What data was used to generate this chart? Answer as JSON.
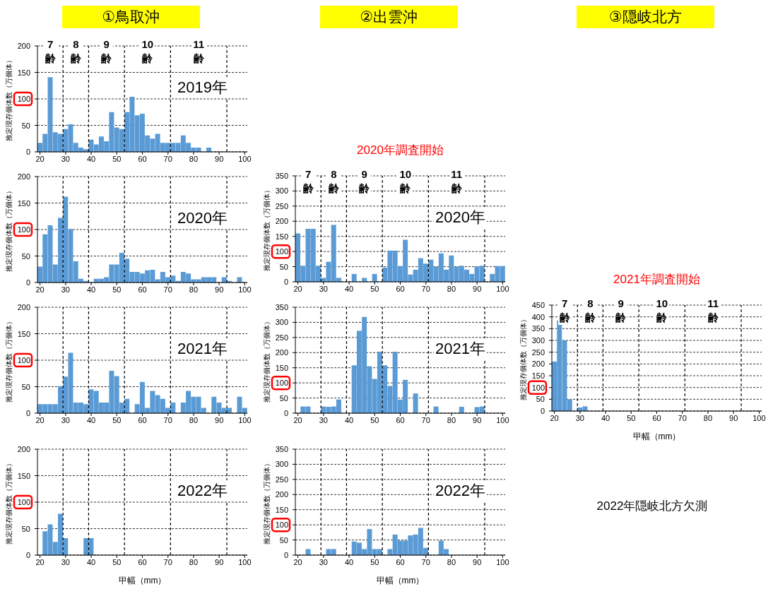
{
  "chart_data": [
    {
      "type": "histogram",
      "title": "①鳥取沖",
      "ylabel": "推定現存個体数（万個体）",
      "color": "#5b9bd5",
      "grid": "y",
      "line_style": "dashed",
      "xlim": [
        19,
        101
      ],
      "xticks": [
        20,
        30,
        40,
        50,
        60,
        70,
        80,
        90,
        100
      ],
      "ylim": [
        0,
        200
      ],
      "yticks": [
        0,
        50,
        100,
        150,
        200
      ],
      "bins": [
        19,
        21,
        23,
        25,
        27,
        29,
        31,
        33,
        35,
        37,
        39,
        41,
        43,
        45,
        47,
        49,
        51,
        53,
        55,
        57,
        59,
        61,
        63,
        65,
        67,
        69,
        71,
        73,
        75,
        77,
        79,
        81,
        83,
        85,
        87,
        89,
        91,
        93,
        95,
        97,
        99,
        101
      ],
      "values": [
        17,
        34,
        141,
        37,
        34,
        43,
        52,
        17,
        8,
        5,
        23,
        14,
        29,
        20,
        75,
        46,
        43,
        75,
        104,
        69,
        72,
        31,
        25,
        34,
        17,
        17,
        17,
        17,
        31,
        17,
        8,
        8,
        0,
        8,
        0,
        0,
        0,
        0,
        0,
        0,
        0
      ],
      "ref_lines": [
        {
          "axis": "x",
          "value": 29
        },
        {
          "axis": "x",
          "value": 39
        },
        {
          "axis": "x",
          "value": 53
        },
        {
          "axis": "x",
          "value": 71
        },
        {
          "axis": "x",
          "value": 93
        }
      ],
      "annotations": [
        "7\n齢",
        "8\n齢",
        "9\n齢",
        "10\n齢",
        "11\n齢",
        "2019年"
      ]
    },
    {
      "type": "histogram",
      "ylabel": "推定現存個体数（万個体）",
      "color": "#5b9bd5",
      "grid": "y",
      "line_style": "dashed",
      "xlim": [
        19,
        101
      ],
      "xticks": [
        20,
        30,
        40,
        50,
        60,
        70,
        80,
        90,
        100
      ],
      "ylim": [
        0,
        200
      ],
      "yticks": [
        0,
        50,
        100,
        150,
        200
      ],
      "bins": [
        19,
        21,
        23,
        25,
        27,
        29,
        31,
        33,
        35,
        37,
        39,
        41,
        43,
        45,
        47,
        49,
        51,
        53,
        55,
        57,
        59,
        61,
        63,
        65,
        67,
        69,
        71,
        73,
        75,
        77,
        79,
        81,
        83,
        85,
        87,
        89,
        91,
        93,
        95,
        97,
        99,
        101
      ],
      "values": [
        30,
        91,
        108,
        34,
        122,
        162,
        101,
        40,
        7,
        3,
        0,
        7,
        7,
        10,
        34,
        34,
        56,
        45,
        20,
        20,
        17,
        23,
        24,
        6,
        20,
        10,
        13,
        3,
        20,
        17,
        6,
        6,
        10,
        10,
        10,
        0,
        10,
        3,
        0,
        10,
        0
      ],
      "ref_lines": [
        {
          "axis": "x",
          "value": 29
        },
        {
          "axis": "x",
          "value": 39
        },
        {
          "axis": "x",
          "value": 53
        },
        {
          "axis": "x",
          "value": 71
        },
        {
          "axis": "x",
          "value": 93
        }
      ],
      "annotations": [
        "2020年"
      ]
    },
    {
      "type": "histogram",
      "ylabel": "推定現存個体数（万個体）",
      "color": "#5b9bd5",
      "grid": "y",
      "line_style": "dashed",
      "xlim": [
        19,
        101
      ],
      "xticks": [
        20,
        30,
        40,
        50,
        60,
        70,
        80,
        90,
        100
      ],
      "ylim": [
        0,
        200
      ],
      "yticks": [
        0,
        50,
        100,
        150,
        200
      ],
      "bins": [
        19,
        21,
        23,
        25,
        27,
        29,
        31,
        33,
        35,
        37,
        39,
        41,
        43,
        45,
        47,
        49,
        51,
        53,
        55,
        57,
        59,
        61,
        63,
        65,
        67,
        69,
        71,
        73,
        75,
        77,
        79,
        81,
        83,
        85,
        87,
        89,
        91,
        93,
        95,
        97,
        99,
        101
      ],
      "values": [
        17,
        17,
        17,
        17,
        51,
        69,
        114,
        20,
        20,
        17,
        45,
        42,
        20,
        20,
        80,
        70,
        20,
        27,
        0,
        17,
        59,
        10,
        42,
        34,
        27,
        10,
        20,
        0,
        20,
        42,
        31,
        31,
        10,
        0,
        31,
        20,
        10,
        10,
        0,
        31,
        10
      ],
      "ref_lines": [
        {
          "axis": "x",
          "value": 29
        },
        {
          "axis": "x",
          "value": 39
        },
        {
          "axis": "x",
          "value": 53
        },
        {
          "axis": "x",
          "value": 71
        },
        {
          "axis": "x",
          "value": 93
        }
      ],
      "annotations": [
        "2021年"
      ]
    },
    {
      "type": "histogram",
      "xlabel": "甲幅（mm）",
      "ylabel": "推定現存個体数（万個体）",
      "color": "#5b9bd5",
      "grid": "y",
      "line_style": "dashed",
      "xlim": [
        19,
        101
      ],
      "xticks": [
        20,
        30,
        40,
        50,
        60,
        70,
        80,
        90,
        100
      ],
      "ylim": [
        0,
        200
      ],
      "yticks": [
        0,
        50,
        100,
        150,
        200
      ],
      "bins": [
        19,
        21,
        23,
        25,
        27,
        29,
        31,
        33,
        35,
        37,
        39,
        41,
        43,
        45,
        47,
        49,
        51,
        53,
        55,
        57,
        59,
        61,
        63,
        65,
        67,
        69,
        71,
        73,
        75,
        77,
        79,
        81,
        83,
        85,
        87,
        89,
        91,
        93,
        95,
        97,
        99,
        101
      ],
      "values": [
        0,
        45,
        58,
        25,
        78,
        32,
        0,
        0,
        0,
        32,
        32,
        0,
        0,
        0,
        0,
        0,
        0,
        0,
        0,
        0,
        0,
        0,
        0,
        0,
        0,
        0,
        0,
        0,
        0,
        0,
        0,
        0,
        0,
        0,
        0,
        0,
        0,
        0,
        0,
        0,
        0
      ],
      "ref_lines": [
        {
          "axis": "x",
          "value": 29
        },
        {
          "axis": "x",
          "value": 39
        },
        {
          "axis": "x",
          "value": 53
        },
        {
          "axis": "x",
          "value": 71
        },
        {
          "axis": "x",
          "value": 93
        }
      ],
      "annotations": [
        "2022年"
      ]
    },
    {
      "type": "histogram",
      "title": "②出雲沖",
      "subtitle": "2020年調査開始",
      "ylabel": "推定現存個体数（万個体）",
      "color": "#5b9bd5",
      "grid": "y",
      "line_style": "dashed",
      "xlim": [
        19,
        101
      ],
      "xticks": [
        20,
        30,
        40,
        50,
        60,
        70,
        80,
        90,
        100
      ],
      "ylim": [
        0,
        350
      ],
      "yticks": [
        0,
        50,
        100,
        150,
        200,
        250,
        300,
        350
      ],
      "bins": [
        19,
        21,
        23,
        25,
        27,
        29,
        31,
        33,
        35,
        37,
        39,
        41,
        43,
        45,
        47,
        49,
        51,
        53,
        55,
        57,
        59,
        61,
        63,
        65,
        67,
        69,
        71,
        73,
        75,
        77,
        79,
        81,
        83,
        85,
        87,
        89,
        91,
        93,
        95,
        97,
        99,
        101
      ],
      "values": [
        160,
        53,
        175,
        175,
        53,
        13,
        66,
        188,
        13,
        0,
        0,
        26,
        0,
        13,
        0,
        26,
        0,
        47,
        103,
        103,
        52,
        139,
        24,
        40,
        78,
        60,
        73,
        50,
        94,
        40,
        87,
        50,
        53,
        40,
        26,
        51,
        53,
        0,
        26,
        52,
        52
      ],
      "ref_lines": [
        {
          "axis": "x",
          "value": 29
        },
        {
          "axis": "x",
          "value": 39
        },
        {
          "axis": "x",
          "value": 53
        },
        {
          "axis": "x",
          "value": 71
        },
        {
          "axis": "x",
          "value": 93
        }
      ],
      "annotations": [
        "7\n齢",
        "8\n齢",
        "9\n齢",
        "10\n齢",
        "11\n齢",
        "2020年"
      ]
    },
    {
      "type": "histogram",
      "ylabel": "推定現存個体数（万個体）",
      "color": "#5b9bd5",
      "grid": "y",
      "line_style": "dashed",
      "xlim": [
        19,
        101
      ],
      "xticks": [
        20,
        30,
        40,
        50,
        60,
        70,
        80,
        90,
        100
      ],
      "ylim": [
        0,
        350
      ],
      "yticks": [
        0,
        50,
        100,
        150,
        200,
        250,
        300,
        350
      ],
      "bins": [
        19,
        21,
        23,
        25,
        27,
        29,
        31,
        33,
        35,
        37,
        39,
        41,
        43,
        45,
        47,
        49,
        51,
        53,
        55,
        57,
        59,
        61,
        63,
        65,
        67,
        69,
        71,
        73,
        75,
        77,
        79,
        81,
        83,
        85,
        87,
        89,
        91,
        93,
        95,
        97,
        99,
        101
      ],
      "values": [
        0,
        22,
        22,
        0,
        0,
        22,
        21,
        22,
        45,
        0,
        0,
        158,
        272,
        318,
        155,
        113,
        203,
        158,
        90,
        203,
        45,
        110,
        0,
        65,
        0,
        0,
        0,
        22,
        0,
        0,
        0,
        0,
        21,
        0,
        0,
        20,
        22,
        0,
        0,
        0,
        0
      ],
      "ref_lines": [
        {
          "axis": "x",
          "value": 29
        },
        {
          "axis": "x",
          "value": 39
        },
        {
          "axis": "x",
          "value": 53
        },
        {
          "axis": "x",
          "value": 71
        },
        {
          "axis": "x",
          "value": 93
        }
      ],
      "annotations": [
        "2021年"
      ]
    },
    {
      "type": "histogram",
      "xlabel": "甲幅（mm）",
      "ylabel": "推定現存個体数（万個体）",
      "color": "#5b9bd5",
      "grid": "y",
      "line_style": "dashed",
      "xlim": [
        19,
        101
      ],
      "xticks": [
        20,
        30,
        40,
        50,
        60,
        70,
        80,
        90,
        100
      ],
      "ylim": [
        0,
        350
      ],
      "yticks": [
        0,
        50,
        100,
        150,
        200,
        250,
        300,
        350
      ],
      "bins": [
        19,
        21,
        23,
        25,
        27,
        29,
        31,
        33,
        35,
        37,
        39,
        41,
        43,
        45,
        47,
        49,
        51,
        53,
        55,
        57,
        59,
        61,
        63,
        65,
        67,
        69,
        71,
        73,
        75,
        77,
        79,
        81,
        83,
        85,
        87,
        89,
        91,
        93,
        95,
        97,
        99,
        101
      ],
      "values": [
        0,
        0,
        20,
        0,
        0,
        0,
        20,
        20,
        0,
        0,
        0,
        45,
        41,
        20,
        86,
        20,
        20,
        0,
        20,
        68,
        48,
        48,
        65,
        68,
        90,
        24,
        0,
        0,
        48,
        20,
        0,
        0,
        0,
        0,
        0,
        0,
        0,
        0,
        0,
        0,
        0
      ],
      "ref_lines": [
        {
          "axis": "x",
          "value": 29
        },
        {
          "axis": "x",
          "value": 39
        },
        {
          "axis": "x",
          "value": 53
        },
        {
          "axis": "x",
          "value": 71
        },
        {
          "axis": "x",
          "value": 93
        }
      ],
      "annotations": [
        "2022年"
      ]
    },
    {
      "type": "histogram",
      "title": "③隠岐北方",
      "subtitle": "2021年調査開始",
      "xlabel": "甲幅（mm）",
      "ylabel": "推定現存個体数（万個体）",
      "color": "#5b9bd5",
      "grid": "y",
      "line_style": "dashed",
      "xlim": [
        19,
        101
      ],
      "xticks": [
        20,
        30,
        40,
        50,
        60,
        70,
        80,
        90,
        100
      ],
      "ylim": [
        0,
        450
      ],
      "yticks": [
        0,
        50,
        100,
        150,
        200,
        250,
        300,
        350,
        400,
        450
      ],
      "bins": [
        19,
        21,
        23,
        25,
        27,
        29,
        31,
        33,
        35,
        37,
        39,
        41,
        43,
        45,
        47,
        49,
        51,
        53,
        55,
        57,
        59,
        61,
        63,
        65,
        67,
        69,
        71,
        73,
        75,
        77,
        79,
        81,
        83,
        85,
        87,
        89,
        91,
        93,
        95,
        97,
        99,
        101
      ],
      "values": [
        210,
        385,
        300,
        50,
        0,
        15,
        20,
        0,
        0,
        0,
        0,
        0,
        0,
        0,
        0,
        0,
        0,
        0,
        0,
        0,
        0,
        0,
        0,
        0,
        0,
        0,
        0,
        0,
        0,
        0,
        0,
        0,
        0,
        0,
        0,
        0,
        0,
        0,
        0,
        0,
        0
      ],
      "ref_lines": [
        {
          "axis": "x",
          "value": 29
        },
        {
          "axis": "x",
          "value": 39
        },
        {
          "axis": "x",
          "value": 53
        },
        {
          "axis": "x",
          "value": 71
        },
        {
          "axis": "x",
          "value": 93
        }
      ],
      "annotations": [
        "7\n齢",
        "8\n齢",
        "9\n齢",
        "10\n齢",
        "11\n齢"
      ]
    },
    {
      "type": "other",
      "annotations": [
        "2022年隠岐北方欠測"
      ]
    }
  ]
}
